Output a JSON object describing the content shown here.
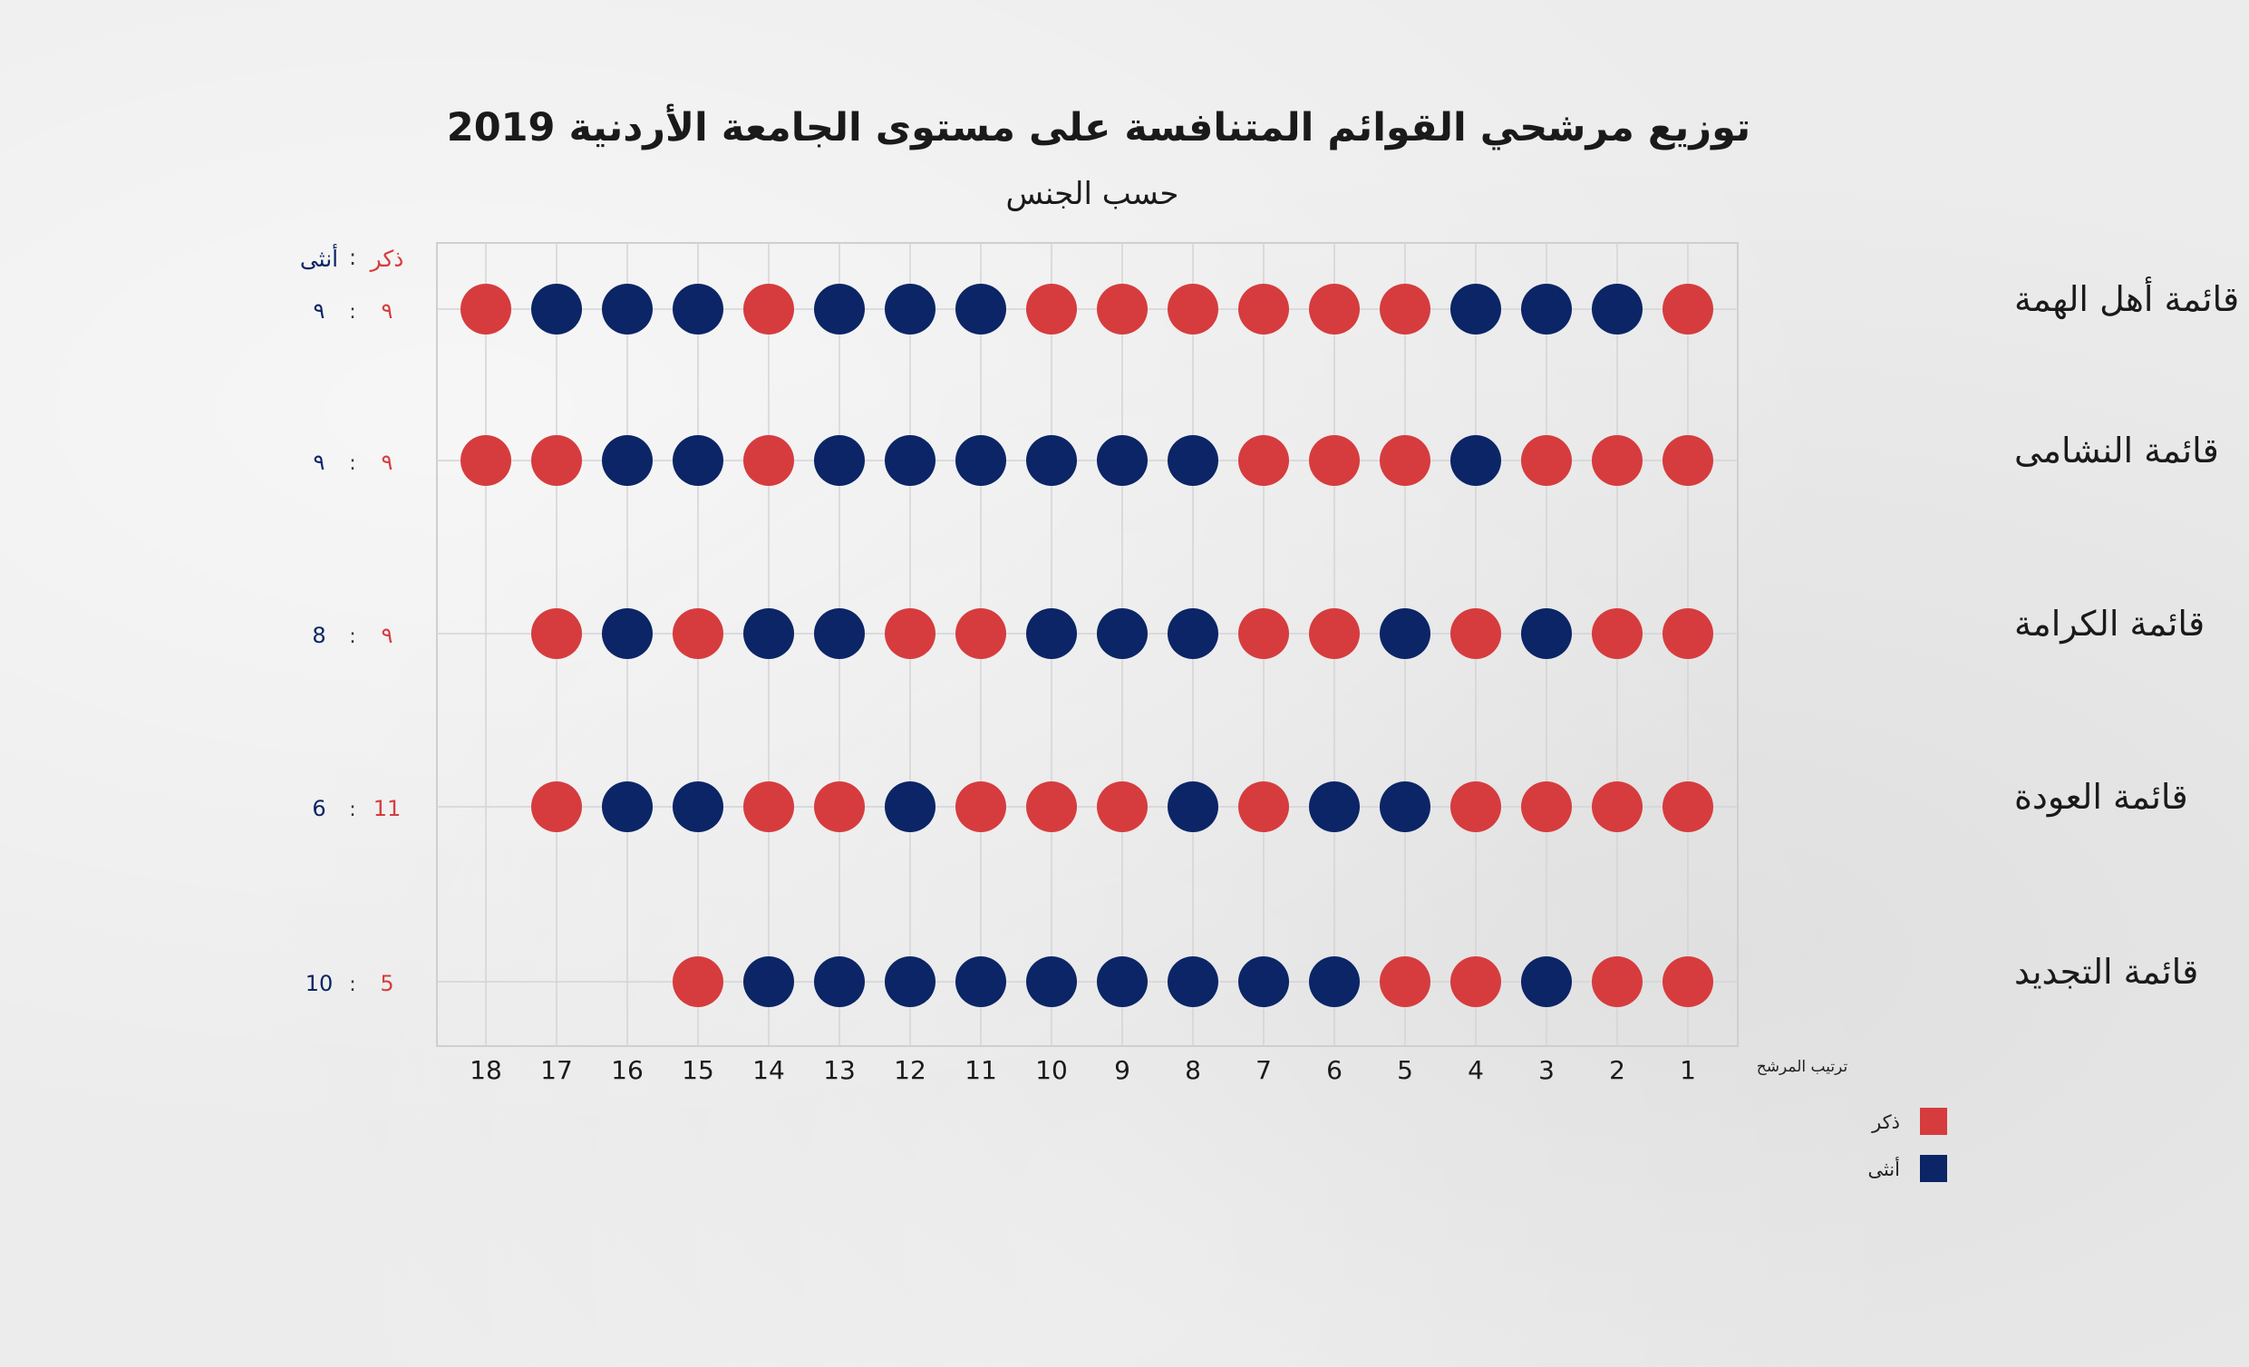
{
  "chart_data": {
    "type": "scatter",
    "title": "توزيع مرشحي القوائم المتنافسة على مستوى الجامعة الأردنية 2019",
    "subtitle": "حسب الجنس",
    "xlabel": "ترتيب المرشح",
    "x_ticks": [
      "1",
      "2",
      "3",
      "4",
      "5",
      "6",
      "7",
      "8",
      "9",
      "10",
      "11",
      "12",
      "13",
      "14",
      "15",
      "16",
      "17",
      "18"
    ],
    "count_header": {
      "male": "ذكر",
      "sep": ":",
      "female": "أنثى"
    },
    "legend": [
      {
        "key": "M",
        "label": "ذكر",
        "color": "#d63c3e"
      },
      {
        "key": "F",
        "label": "أنثى",
        "color": "#0b2566"
      }
    ],
    "grid": true,
    "lists": [
      {
        "name": "قائمة أهل الهمة",
        "male_count": "٩",
        "female_count": "٩",
        "candidates": [
          "M",
          "F",
          "F",
          "F",
          "M",
          "M",
          "M",
          "M",
          "M",
          "M",
          "F",
          "F",
          "F",
          "M",
          "F",
          "F",
          "F",
          "M"
        ]
      },
      {
        "name": "قائمة النشامى",
        "male_count": "٩",
        "female_count": "٩",
        "candidates": [
          "M",
          "M",
          "M",
          "F",
          "M",
          "M",
          "M",
          "F",
          "F",
          "F",
          "F",
          "F",
          "F",
          "M",
          "F",
          "F",
          "M",
          "M"
        ]
      },
      {
        "name": "قائمة الكرامة",
        "male_count": "٩",
        "female_count": "8",
        "candidates": [
          "M",
          "M",
          "F",
          "M",
          "F",
          "M",
          "M",
          "F",
          "F",
          "F",
          "M",
          "M",
          "F",
          "F",
          "M",
          "F",
          "M"
        ]
      },
      {
        "name": "قائمة العودة",
        "male_count": "11",
        "female_count": "6",
        "candidates": [
          "M",
          "M",
          "M",
          "M",
          "F",
          "F",
          "M",
          "F",
          "M",
          "M",
          "M",
          "F",
          "M",
          "M",
          "F",
          "F",
          "M"
        ]
      },
      {
        "name": "قائمة التجديد",
        "male_count": "5",
        "female_count": "10",
        "candidates": [
          "M",
          "M",
          "F",
          "M",
          "M",
          "F",
          "F",
          "F",
          "F",
          "F",
          "F",
          "F",
          "F",
          "F",
          "M"
        ]
      }
    ]
  }
}
